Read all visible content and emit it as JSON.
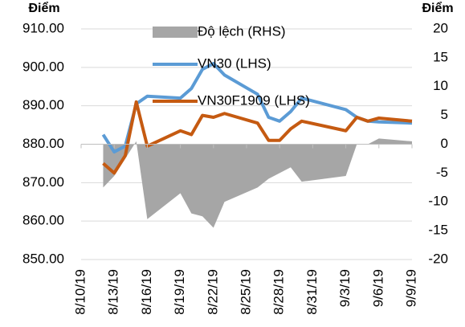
{
  "chart_data": {
    "type": "combo",
    "y_label": "Điểm",
    "y2_label": "Điểm",
    "x": [
      "8/12/19",
      "8/13/19",
      "8/14/19",
      "8/15/19",
      "8/16/19",
      "8/19/19",
      "8/20/19",
      "8/21/19",
      "8/22/19",
      "8/23/19",
      "8/26/19",
      "8/27/19",
      "8/28/19",
      "8/29/19",
      "8/30/19",
      "9/3/19",
      "9/4/19",
      "9/5/19",
      "9/6/19",
      "9/9/19"
    ],
    "xlim": [
      "8/10/19",
      "9/9/19"
    ],
    "xticks": [
      "8/10/19",
      "8/13/19",
      "8/16/19",
      "8/19/19",
      "8/22/19",
      "8/25/19",
      "8/28/19",
      "8/31/19",
      "9/3/19",
      "9/6/19",
      "9/9/19"
    ],
    "ylim": [
      850,
      910
    ],
    "yticks": [
      {
        "value": 850,
        "label": "850.00"
      },
      {
        "value": 860,
        "label": "860.00"
      },
      {
        "value": 870,
        "label": "870.00"
      },
      {
        "value": 880,
        "label": "880.00"
      },
      {
        "value": 890,
        "label": "890.00"
      },
      {
        "value": 900,
        "label": "900.00"
      },
      {
        "value": 910,
        "label": "910.00"
      }
    ],
    "y2lim": [
      -20,
      20
    ],
    "y2ticks": [
      -20,
      -15,
      -10,
      -5,
      0,
      5,
      10,
      15,
      20
    ],
    "grid": true,
    "series": [
      {
        "name": "Độ lệch (RHS)",
        "type": "area",
        "axis": "y2",
        "color": "#a6a6a6",
        "values": [
          -7.5,
          -5.5,
          -2.5,
          0.5,
          -13,
          -8.5,
          -12,
          -12.5,
          -14.5,
          -10,
          -7.5,
          -6,
          -5,
          -4,
          -6.5,
          -5.5,
          0,
          0,
          1,
          0.5
        ]
      },
      {
        "name": "VN30 (LHS)",
        "type": "line",
        "color": "#5b9bd5",
        "values": [
          882.5,
          878,
          879.5,
          890.5,
          892.5,
          892,
          894.5,
          899.5,
          901,
          898,
          893,
          887,
          886,
          888.5,
          892,
          889,
          887,
          886,
          885.8,
          885.5
        ]
      },
      {
        "name": "VN30F1909 (LHS)",
        "type": "line",
        "color": "#c55a11",
        "values": [
          875,
          872.5,
          877,
          891,
          879.5,
          883.5,
          882.5,
          887.5,
          887,
          888,
          885.5,
          881,
          881,
          884,
          886,
          883.5,
          887,
          886,
          886.8,
          886
        ]
      }
    ]
  }
}
